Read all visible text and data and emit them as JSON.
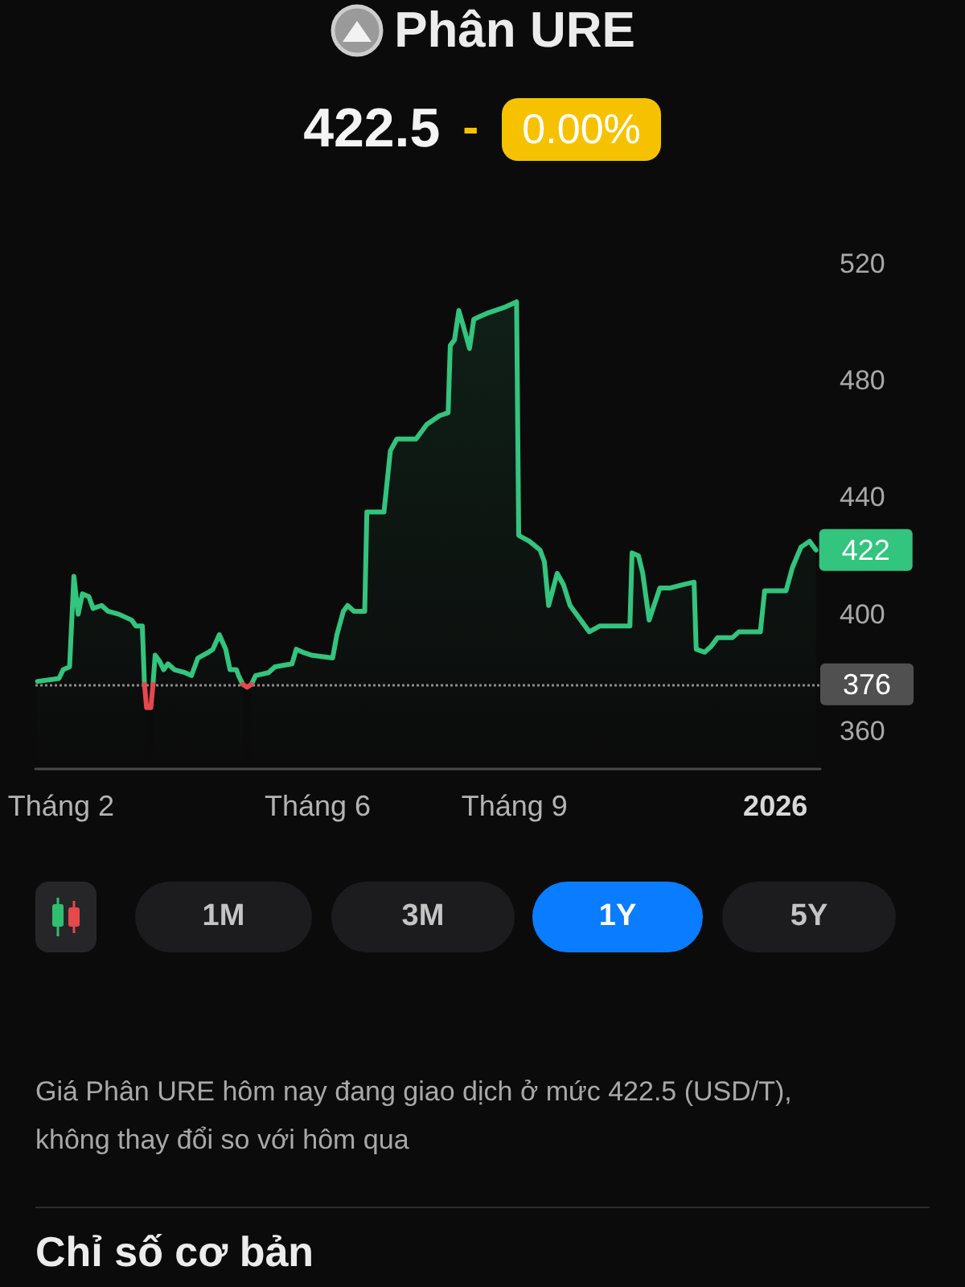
{
  "chart_data": {
    "type": "area",
    "title": "Phân URE",
    "subtitle": "422.5 - 0.00%",
    "annotations": [
      "1M",
      "3M",
      "1Y",
      "5Y",
      "Giá Phân URE hôm nay đang giao dịch ở mức 422.5 (USD/T), không thay đổi so với hôm qua",
      "Chỉ số cơ bản"
    ],
    "series": [
      {
        "color": "#33c47d",
        "x": [
          "2025-01-21",
          "2025-01-31",
          "2025-02-02",
          "2025-02-05",
          "2025-02-07",
          "2025-02-09",
          "2025-02-11",
          "2025-02-14",
          "2025-02-16",
          "2025-02-20",
          "2025-02-23",
          "2025-02-28",
          "2025-03-06",
          "2025-03-08",
          "2025-03-11",
          "2025-03-12",
          "2025-03-13",
          "2025-03-15",
          "2025-03-16",
          "2025-03-17",
          "2025-03-19",
          "2025-03-21",
          "2025-03-23",
          "2025-03-26",
          "2025-03-31",
          "2025-04-03",
          "2025-04-06",
          "2025-04-11",
          "2025-04-13",
          "2025-04-16",
          "2025-04-19",
          "2025-04-21",
          "2025-04-24",
          "2025-04-25",
          "2025-04-27",
          "2025-04-29",
          "2025-05-01",
          "2025-05-03",
          "2025-05-09",
          "2025-05-12",
          "2025-05-20",
          "2025-05-22",
          "2025-05-25",
          "2025-05-29",
          "2025-06-08",
          "2025-06-10",
          "2025-06-13",
          "2025-06-15",
          "2025-06-18",
          "2025-06-23",
          "2025-06-24",
          "2025-07-02",
          "2025-07-05",
          "2025-07-08",
          "2025-07-17",
          "2025-07-22",
          "2025-07-28",
          "2025-08-01",
          "2025-08-02",
          "2025-08-04",
          "2025-08-06",
          "2025-08-08",
          "2025-08-11",
          "2025-08-13",
          "2025-08-16",
          "2025-08-19",
          "2025-08-27",
          "2025-09-02",
          "2025-09-03",
          "2025-09-08",
          "2025-09-13",
          "2025-09-15",
          "2025-09-17",
          "2025-09-21",
          "2025-09-24",
          "2025-09-27",
          "2025-10-02",
          "2025-10-06",
          "2025-10-11",
          "2025-10-25",
          "2025-10-26",
          "2025-10-29",
          "2025-10-31",
          "2025-11-03",
          "2025-11-08",
          "2025-11-13",
          "2025-11-18",
          "2025-11-24",
          "2025-11-25",
          "2025-11-29",
          "2025-12-02",
          "2025-12-05",
          "2025-12-12",
          "2025-12-15",
          "2025-12-25",
          "2025-12-27",
          "2026-01-06",
          "2026-01-09",
          "2026-01-13",
          "2026-01-17",
          "2026-01-20"
        ],
        "values": [
          377,
          378,
          381,
          382,
          413,
          400,
          407,
          406,
          402,
          403,
          401,
          400,
          398,
          396,
          396,
          376,
          null,
          null,
          376,
          386,
          384,
          381,
          383,
          381,
          380,
          379,
          385,
          387,
          388,
          393,
          388,
          381,
          381,
          379,
          376,
          null,
          376,
          379,
          380,
          382,
          383,
          388,
          387,
          386,
          385,
          393,
          401,
          403,
          401,
          401,
          435,
          435,
          456,
          460,
          460,
          465,
          468,
          469,
          492,
          494,
          504,
          499,
          491,
          501,
          502,
          503,
          505,
          507,
          427,
          425,
          422,
          418,
          403,
          414,
          410,
          403,
          398,
          394,
          396,
          396,
          421,
          420,
          414,
          398,
          409,
          409,
          410,
          411,
          388,
          387,
          389,
          392,
          392,
          394,
          394,
          408,
          408,
          416,
          423,
          425,
          422
        ],
        "value_labels": [
          null,
          null,
          null,
          null,
          null,
          null,
          null,
          null,
          null,
          null,
          null,
          null,
          null,
          null,
          null,
          null,
          null,
          null,
          null,
          null,
          null,
          null,
          null,
          null,
          null,
          null,
          null,
          null,
          null,
          null,
          null,
          null,
          null,
          null,
          null,
          null,
          null,
          null,
          null,
          null,
          null,
          null,
          null,
          null,
          null,
          null,
          null,
          null,
          null,
          null,
          null,
          null,
          null,
          null,
          null,
          null,
          null,
          null,
          null,
          null,
          null,
          null,
          null,
          null,
          null,
          null,
          null,
          null,
          null,
          null,
          null,
          null,
          null,
          null,
          null,
          null,
          null,
          null,
          null,
          null,
          null,
          null,
          null,
          null,
          null,
          null,
          null,
          null,
          null,
          null,
          null,
          null,
          null,
          null,
          null,
          null,
          null,
          null,
          null,
          null,
          "422"
        ]
      },
      {
        "type": "line",
        "color": "#e5484d",
        "x": [
          "2025-03-12",
          "2025-03-13",
          "2025-03-15",
          "2025-03-16"
        ],
        "values": [
          376,
          368,
          368,
          376
        ]
      },
      {
        "type": "line",
        "color": "#e5484d",
        "x": [
          "2025-04-27",
          "2025-04-29",
          "2025-05-01"
        ],
        "values": [
          376,
          375,
          376
        ]
      }
    ],
    "xlim": [
      "2025-01-20",
      "2026-01-22"
    ],
    "xticks": [
      {
        "value": "2025-02-01",
        "label": "Tháng 2"
      },
      {
        "value": "2025-06-01",
        "label": "Tháng 6"
      },
      {
        "value": "2025-09-01",
        "label": "Tháng 9"
      },
      {
        "value": "2026-01-01",
        "label": "2026"
      }
    ],
    "ylim": [
      347,
      520
    ],
    "yticks": [
      360,
      400,
      440,
      480,
      520
    ],
    "ref_lines": [
      {
        "axis": "y",
        "value": 376,
        "label": "376",
        "color": "#8a8a8a",
        "line_style": "dotted"
      }
    ],
    "grid": false,
    "marker": "none",
    "line_style": "solid"
  }
}
